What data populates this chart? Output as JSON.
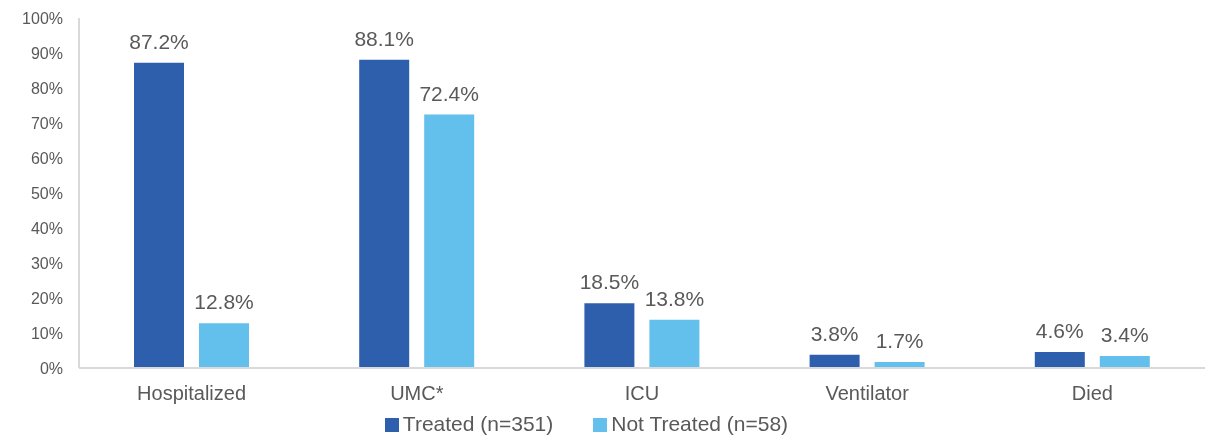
{
  "chart_data": {
    "type": "bar",
    "categories": [
      "Hospitalized",
      "UMC*",
      "ICU",
      "Ventilator",
      "Died"
    ],
    "series": [
      {
        "name": "Treated (n=351)",
        "color": "#2e5fac",
        "values": [
          87.2,
          88.1,
          18.5,
          3.8,
          4.6
        ],
        "value_labels": [
          "87.2%",
          "88.1%",
          "18.5%",
          "3.8%",
          "4.6%"
        ]
      },
      {
        "name": "Not Treated (n=58)",
        "color": "#63bfeb",
        "values": [
          12.8,
          72.4,
          13.8,
          1.7,
          3.4
        ],
        "value_labels": [
          "12.8%",
          "72.4%",
          "13.8%",
          "1.7%",
          "3.4%"
        ]
      }
    ],
    "ylim": [
      0,
      100
    ],
    "yticks": [
      {
        "value": 0,
        "label": "0%"
      },
      {
        "value": 10,
        "label": "10%"
      },
      {
        "value": 20,
        "label": "20%"
      },
      {
        "value": 30,
        "label": "30%"
      },
      {
        "value": 40,
        "label": "40%"
      },
      {
        "value": 50,
        "label": "50%"
      },
      {
        "value": 60,
        "label": "60%"
      },
      {
        "value": 70,
        "label": "70%"
      },
      {
        "value": 80,
        "label": "80%"
      },
      {
        "value": 90,
        "label": "90%"
      },
      {
        "value": 100,
        "label": "100%"
      }
    ],
    "legend": "bottom"
  }
}
